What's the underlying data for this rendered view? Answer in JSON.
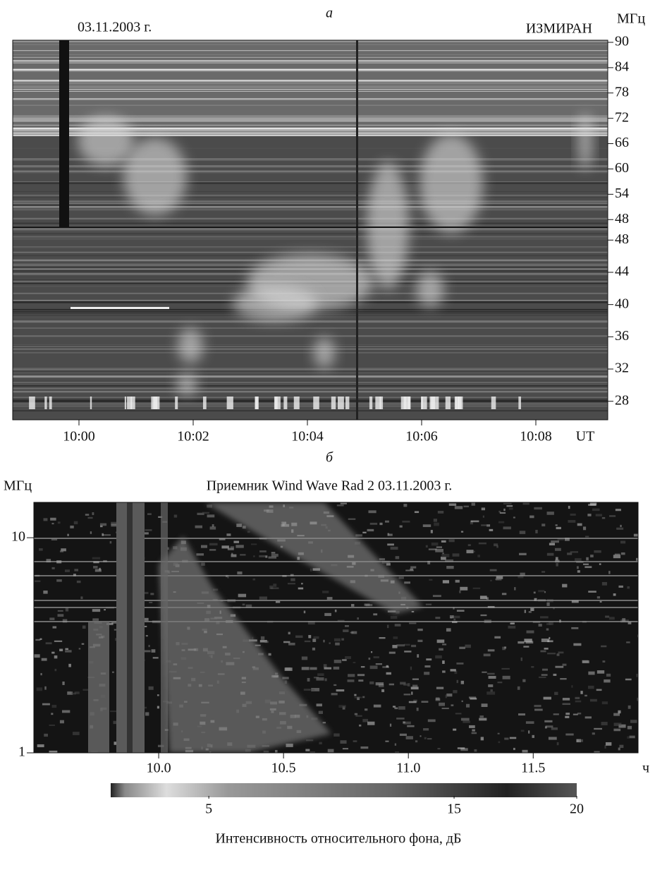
{
  "chart_data": [
    {
      "type": "spectrogram",
      "panel_label": "а",
      "date": "03.11.2003 г.",
      "observatory": "ИЗМИРАН",
      "y_unit": "МГц",
      "x_unit": "UT",
      "xticks": [
        "10:00",
        "10:02",
        "10:04",
        "10:06",
        "10:08"
      ],
      "bands": [
        {
          "ylim": [
            46.2,
            90.5
          ],
          "yticks": [
            90,
            84,
            78,
            72,
            66,
            60,
            54,
            48
          ]
        },
        {
          "ylim": [
            25.7,
            49.6
          ],
          "yticks": [
            48,
            44,
            40,
            36,
            32,
            28
          ]
        }
      ]
    },
    {
      "type": "spectrogram",
      "panel_label": "б",
      "title": "Приемник Wind Wave Rad 2 03.11.2003 г.",
      "y_unit": "МГц",
      "x_unit": "ч",
      "log_y": true,
      "xlim": [
        9.5,
        11.92
      ],
      "ylim": [
        1,
        14.6
      ],
      "xticks": [
        {
          "value": 10,
          "label": "10.0"
        },
        10.5,
        {
          "value": 11,
          "label": "11.0"
        },
        11.5
      ],
      "yticks": [
        1,
        10
      ],
      "colorbar": {
        "label": "Интенсивность относительного фона, дБ",
        "clim": [
          1,
          20
        ],
        "ticks": [
          5,
          15,
          20
        ]
      }
    }
  ]
}
